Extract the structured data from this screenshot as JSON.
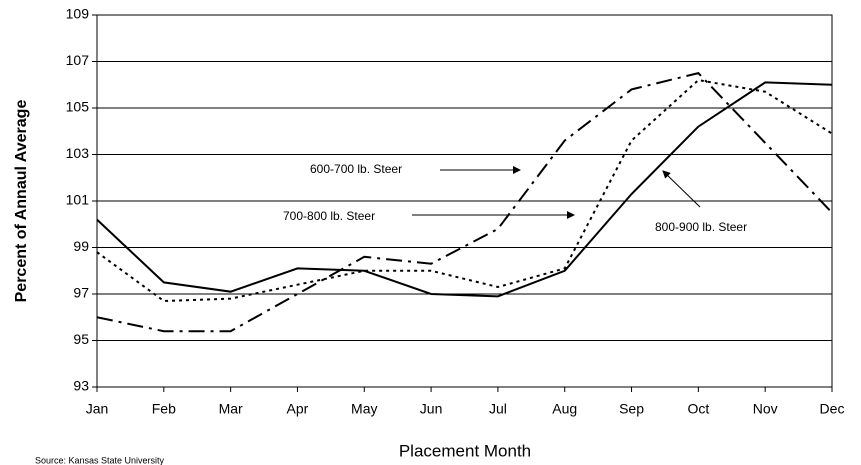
{
  "chart_data": {
    "type": "line",
    "categories": [
      "Jan",
      "Feb",
      "Mar",
      "Apr",
      "May",
      "Jun",
      "Jul",
      "Aug",
      "Sep",
      "Oct",
      "Nov",
      "Dec"
    ],
    "series": [
      {
        "name": "600-700 lb. Steer",
        "color": "#000000",
        "line_style": "dashdot",
        "values": [
          96.0,
          95.4,
          95.4,
          97.0,
          98.6,
          98.3,
          99.8,
          103.6,
          105.8,
          106.5,
          103.5,
          100.5
        ]
      },
      {
        "name": "700-800 lb. Steer",
        "color": "#000000",
        "line_style": "dotted",
        "values": [
          98.8,
          96.7,
          96.8,
          97.4,
          98.0,
          98.0,
          97.3,
          98.1,
          103.6,
          106.2,
          105.7,
          103.9
        ]
      },
      {
        "name": "800-900 lb. Steer",
        "color": "#000000",
        "line_style": "solid",
        "values": [
          100.2,
          97.5,
          97.1,
          98.1,
          98.0,
          97.0,
          96.9,
          98.0,
          101.3,
          104.2,
          106.1,
          106.0
        ]
      }
    ],
    "x_label": "Placement Month",
    "y_label": "Percent of Annaul Average",
    "source": "Source: Kansas State University",
    "ylim": [
      93,
      109
    ],
    "yticks": [
      93,
      95,
      97,
      99,
      101,
      103,
      105,
      107,
      109
    ],
    "grid": true
  }
}
